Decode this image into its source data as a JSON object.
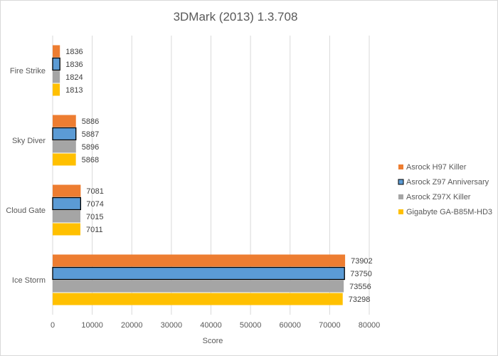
{
  "chart_data": {
    "type": "bar",
    "orientation": "horizontal",
    "title": "3DMark (2013) 1.3.708",
    "xlabel": "Score",
    "ylabel": "",
    "xlim": [
      0,
      80000
    ],
    "xticks": [
      0,
      10000,
      20000,
      30000,
      40000,
      50000,
      60000,
      70000,
      80000
    ],
    "grid": true,
    "legend_position": "right",
    "categories": [
      "Fire Strike",
      "Sky Diver",
      "Cloud Gate",
      "Ice Storm"
    ],
    "series": [
      {
        "name": "Asrock H97 Killer",
        "color": "#ED7D31",
        "values": [
          1836,
          5886,
          7081,
          73902
        ]
      },
      {
        "name": "Asrock Z97 Anniversary",
        "color": "#5B9BD5",
        "outlined": true,
        "values": [
          1836,
          5887,
          7074,
          73750
        ]
      },
      {
        "name": "Asrock Z97X Killer",
        "color": "#A5A5A5",
        "values": [
          1824,
          5896,
          7015,
          73556
        ]
      },
      {
        "name": "Gigabyte GA-B85M-HD3",
        "color": "#FFC000",
        "values": [
          1813,
          5868,
          7011,
          73298
        ]
      }
    ]
  }
}
